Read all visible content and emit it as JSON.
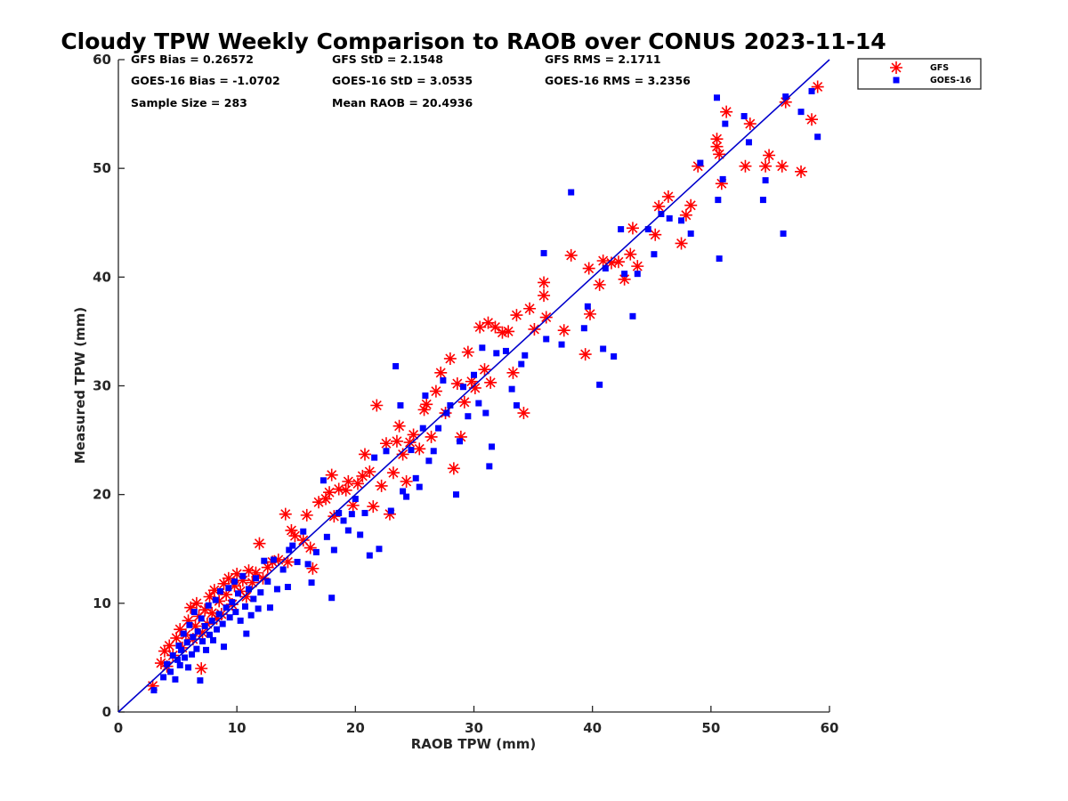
{
  "chart_data": {
    "type": "scatter",
    "title": "Cloudy TPW Weekly Comparison to RAOB over CONUS 2023-11-14",
    "xlabel": "RAOB TPW (mm)",
    "ylabel": "Measured TPW (mm)",
    "xlim": [
      0,
      60
    ],
    "ylim": [
      0,
      60
    ],
    "x_ticks": [
      "0",
      "10",
      "20",
      "30",
      "40",
      "50",
      "60"
    ],
    "y_ticks": [
      "0",
      "10",
      "20",
      "30",
      "40",
      "50",
      "60"
    ],
    "grid": false,
    "legend_position": "top-right (outside plot)",
    "reference_line": {
      "label": "1:1 line",
      "color": "#0000cc",
      "x": [
        0,
        60
      ],
      "y": [
        0,
        60
      ]
    },
    "stats": {
      "gfs_bias": "GFS Bias = 0.26572",
      "gfs_std": "GFS StD = 2.1548",
      "gfs_rms": "GFS RMS = 2.1711",
      "goes_bias": "GOES-16 Bias = -1.0702",
      "goes_std": "GOES-16 StD = 3.0535",
      "goes_rms": "GOES-16 RMS = 3.2356",
      "sample_size": "Sample Size = 283",
      "mean_raob": "Mean RAOB = 20.4936"
    },
    "series": [
      {
        "name": "GFS",
        "marker": "asterisk",
        "color": "#ff0000",
        "points": [
          [
            2.9,
            2.4
          ],
          [
            3.6,
            4.5
          ],
          [
            3.9,
            5.6
          ],
          [
            4.1,
            4.2
          ],
          [
            4.3,
            6.1
          ],
          [
            4.6,
            5.2
          ],
          [
            4.9,
            6.8
          ],
          [
            5.2,
            7.6
          ],
          [
            5.4,
            5.9
          ],
          [
            5.7,
            7.1
          ],
          [
            5.9,
            8.4
          ],
          [
            6.1,
            9.6
          ],
          [
            6.3,
            6.7
          ],
          [
            6.5,
            7.9
          ],
          [
            6.6,
            10.0
          ],
          [
            6.8,
            8.8
          ],
          [
            7.0,
            4.0
          ],
          [
            7.1,
            7.3
          ],
          [
            7.3,
            9.4
          ],
          [
            7.5,
            8.1
          ],
          [
            7.7,
            10.6
          ],
          [
            7.9,
            9.1
          ],
          [
            8.1,
            11.2
          ],
          [
            8.3,
            8.6
          ],
          [
            8.5,
            10.2
          ],
          [
            8.7,
            9.0
          ],
          [
            8.9,
            11.8
          ],
          [
            9.1,
            10.8
          ],
          [
            9.3,
            12.3
          ],
          [
            9.6,
            9.9
          ],
          [
            9.8,
            11.6
          ],
          [
            10.0,
            12.7
          ],
          [
            10.3,
            11.1
          ],
          [
            10.5,
            12.1
          ],
          [
            10.8,
            10.6
          ],
          [
            11.0,
            13.0
          ],
          [
            11.3,
            11.9
          ],
          [
            11.6,
            12.8
          ],
          [
            11.9,
            15.5
          ],
          [
            12.2,
            12.3
          ],
          [
            12.6,
            13.3
          ],
          [
            13.0,
            13.8
          ],
          [
            13.5,
            14.0
          ],
          [
            14.1,
            18.2
          ],
          [
            14.3,
            13.8
          ],
          [
            14.6,
            16.7
          ],
          [
            14.9,
            16.2
          ],
          [
            15.6,
            15.8
          ],
          [
            15.9,
            18.1
          ],
          [
            16.2,
            15.1
          ],
          [
            16.4,
            13.2
          ],
          [
            16.9,
            19.3
          ],
          [
            17.5,
            19.6
          ],
          [
            17.8,
            20.2
          ],
          [
            18.0,
            21.8
          ],
          [
            18.2,
            18.0
          ],
          [
            18.6,
            20.5
          ],
          [
            19.2,
            20.4
          ],
          [
            19.4,
            21.2
          ],
          [
            19.8,
            19.0
          ],
          [
            20.2,
            21.0
          ],
          [
            20.6,
            21.7
          ],
          [
            20.8,
            23.7
          ],
          [
            21.2,
            22.1
          ],
          [
            21.5,
            18.9
          ],
          [
            21.8,
            28.2
          ],
          [
            22.2,
            20.8
          ],
          [
            22.6,
            24.7
          ],
          [
            22.9,
            18.2
          ],
          [
            23.2,
            22.0
          ],
          [
            23.5,
            24.9
          ],
          [
            23.7,
            26.3
          ],
          [
            24.0,
            23.7
          ],
          [
            24.3,
            21.2
          ],
          [
            24.6,
            24.8
          ],
          [
            24.9,
            25.5
          ],
          [
            25.4,
            24.2
          ],
          [
            25.8,
            27.8
          ],
          [
            26.0,
            28.3
          ],
          [
            26.4,
            25.3
          ],
          [
            26.8,
            29.5
          ],
          [
            27.2,
            31.2
          ],
          [
            27.6,
            27.5
          ],
          [
            28.0,
            32.5
          ],
          [
            28.3,
            22.4
          ],
          [
            28.6,
            30.2
          ],
          [
            28.9,
            25.3
          ],
          [
            29.2,
            28.5
          ],
          [
            29.5,
            33.1
          ],
          [
            29.8,
            30.4
          ],
          [
            30.1,
            29.8
          ],
          [
            30.5,
            35.4
          ],
          [
            30.9,
            31.5
          ],
          [
            31.2,
            35.8
          ],
          [
            31.4,
            30.3
          ],
          [
            31.8,
            35.4
          ],
          [
            32.4,
            34.9
          ],
          [
            32.9,
            35.0
          ],
          [
            33.3,
            31.2
          ],
          [
            33.6,
            36.5
          ],
          [
            34.2,
            27.5
          ],
          [
            34.7,
            37.1
          ],
          [
            35.1,
            35.2
          ],
          [
            35.9,
            39.5
          ],
          [
            35.9,
            38.3
          ],
          [
            36.1,
            36.3
          ],
          [
            37.6,
            35.1
          ],
          [
            38.2,
            42.0
          ],
          [
            39.4,
            32.9
          ],
          [
            39.7,
            40.8
          ],
          [
            39.8,
            36.6
          ],
          [
            40.6,
            39.3
          ],
          [
            40.9,
            41.5
          ],
          [
            41.6,
            41.3
          ],
          [
            42.2,
            41.4
          ],
          [
            42.7,
            39.8
          ],
          [
            43.2,
            42.1
          ],
          [
            43.4,
            44.5
          ],
          [
            43.8,
            41.0
          ],
          [
            45.3,
            43.9
          ],
          [
            45.6,
            46.5
          ],
          [
            46.4,
            47.4
          ],
          [
            47.5,
            43.1
          ],
          [
            47.9,
            45.7
          ],
          [
            48.3,
            46.6
          ],
          [
            48.9,
            50.2
          ],
          [
            50.5,
            52.7
          ],
          [
            50.5,
            52.0
          ],
          [
            50.7,
            51.3
          ],
          [
            50.9,
            48.6
          ],
          [
            51.3,
            55.2
          ],
          [
            52.9,
            50.2
          ],
          [
            53.3,
            54.1
          ],
          [
            54.6,
            50.2
          ],
          [
            54.9,
            51.2
          ],
          [
            56.0,
            50.2
          ],
          [
            56.3,
            56.1
          ],
          [
            57.6,
            49.7
          ],
          [
            58.5,
            54.5
          ],
          [
            59.0,
            57.5
          ]
        ]
      },
      {
        "name": "GOES-16",
        "marker": "square",
        "color": "#0000ff",
        "points": [
          [
            3.0,
            2.0
          ],
          [
            3.8,
            3.2
          ],
          [
            4.1,
            4.4
          ],
          [
            4.4,
            3.7
          ],
          [
            4.6,
            5.2
          ],
          [
            4.8,
            3.0
          ],
          [
            5.0,
            4.8
          ],
          [
            5.1,
            6.1
          ],
          [
            5.2,
            4.3
          ],
          [
            5.3,
            5.7
          ],
          [
            5.5,
            7.2
          ],
          [
            5.6,
            5.0
          ],
          [
            5.8,
            6.4
          ],
          [
            5.9,
            4.1
          ],
          [
            6.0,
            8.0
          ],
          [
            6.2,
            5.3
          ],
          [
            6.3,
            6.9
          ],
          [
            6.4,
            9.2
          ],
          [
            6.6,
            5.8
          ],
          [
            6.7,
            7.4
          ],
          [
            6.9,
            2.9
          ],
          [
            7.0,
            8.6
          ],
          [
            7.1,
            6.5
          ],
          [
            7.3,
            7.9
          ],
          [
            7.4,
            5.7
          ],
          [
            7.6,
            9.8
          ],
          [
            7.7,
            7.1
          ],
          [
            7.9,
            8.4
          ],
          [
            8.0,
            6.6
          ],
          [
            8.2,
            10.3
          ],
          [
            8.3,
            7.6
          ],
          [
            8.5,
            9.0
          ],
          [
            8.6,
            11.1
          ],
          [
            8.8,
            8.1
          ],
          [
            8.9,
            6.0
          ],
          [
            9.1,
            9.6
          ],
          [
            9.3,
            11.4
          ],
          [
            9.4,
            8.7
          ],
          [
            9.6,
            10.1
          ],
          [
            9.8,
            12.0
          ],
          [
            9.9,
            9.2
          ],
          [
            10.1,
            10.9
          ],
          [
            10.3,
            8.4
          ],
          [
            10.5,
            12.5
          ],
          [
            10.7,
            9.7
          ],
          [
            10.8,
            7.2
          ],
          [
            11.0,
            11.3
          ],
          [
            11.2,
            8.9
          ],
          [
            11.4,
            10.4
          ],
          [
            11.6,
            12.3
          ],
          [
            11.8,
            9.5
          ],
          [
            12.0,
            11.0
          ],
          [
            12.3,
            13.9
          ],
          [
            12.6,
            12.0
          ],
          [
            12.8,
            9.6
          ],
          [
            13.1,
            14.0
          ],
          [
            13.4,
            11.3
          ],
          [
            13.9,
            13.1
          ],
          [
            14.3,
            11.5
          ],
          [
            14.4,
            14.9
          ],
          [
            14.7,
            15.3
          ],
          [
            15.1,
            13.8
          ],
          [
            15.6,
            16.6
          ],
          [
            16.0,
            13.6
          ],
          [
            16.3,
            11.9
          ],
          [
            16.7,
            14.7
          ],
          [
            17.3,
            21.3
          ],
          [
            17.6,
            16.1
          ],
          [
            18.0,
            10.5
          ],
          [
            18.2,
            14.9
          ],
          [
            18.6,
            18.3
          ],
          [
            19.0,
            17.6
          ],
          [
            19.4,
            16.7
          ],
          [
            19.7,
            18.2
          ],
          [
            20.0,
            19.6
          ],
          [
            20.4,
            16.3
          ],
          [
            20.8,
            18.3
          ],
          [
            21.2,
            14.4
          ],
          [
            21.6,
            23.4
          ],
          [
            22.0,
            15.0
          ],
          [
            22.6,
            24.0
          ],
          [
            23.0,
            18.5
          ],
          [
            23.4,
            31.8
          ],
          [
            23.8,
            28.2
          ],
          [
            24.0,
            20.3
          ],
          [
            24.3,
            19.8
          ],
          [
            24.7,
            24.1
          ],
          [
            25.1,
            21.5
          ],
          [
            25.4,
            20.7
          ],
          [
            25.7,
            26.1
          ],
          [
            25.9,
            29.1
          ],
          [
            26.2,
            23.1
          ],
          [
            26.6,
            24.0
          ],
          [
            27.0,
            26.1
          ],
          [
            27.4,
            30.5
          ],
          [
            27.7,
            27.5
          ],
          [
            28.0,
            28.2
          ],
          [
            28.5,
            20.0
          ],
          [
            28.8,
            24.9
          ],
          [
            29.1,
            29.9
          ],
          [
            29.5,
            27.2
          ],
          [
            30.0,
            31.0
          ],
          [
            30.4,
            28.4
          ],
          [
            30.7,
            33.5
          ],
          [
            31.0,
            27.5
          ],
          [
            31.3,
            22.6
          ],
          [
            31.5,
            24.4
          ],
          [
            31.9,
            33.0
          ],
          [
            32.7,
            33.2
          ],
          [
            33.2,
            29.7
          ],
          [
            33.6,
            28.2
          ],
          [
            34.0,
            32.0
          ],
          [
            34.3,
            32.8
          ],
          [
            35.9,
            42.2
          ],
          [
            36.1,
            34.3
          ],
          [
            37.4,
            33.8
          ],
          [
            38.2,
            47.8
          ],
          [
            39.3,
            35.3
          ],
          [
            39.6,
            37.3
          ],
          [
            40.6,
            30.1
          ],
          [
            40.9,
            33.4
          ],
          [
            41.1,
            40.8
          ],
          [
            41.8,
            32.7
          ],
          [
            42.4,
            44.4
          ],
          [
            42.7,
            40.3
          ],
          [
            43.4,
            36.4
          ],
          [
            43.8,
            40.3
          ],
          [
            44.7,
            44.4
          ],
          [
            45.2,
            42.1
          ],
          [
            45.8,
            45.8
          ],
          [
            46.5,
            45.4
          ],
          [
            47.5,
            45.2
          ],
          [
            48.3,
            44.0
          ],
          [
            49.1,
            50.5
          ],
          [
            50.5,
            56.5
          ],
          [
            50.6,
            47.1
          ],
          [
            50.7,
            41.7
          ],
          [
            51.0,
            49.0
          ],
          [
            51.2,
            54.1
          ],
          [
            52.8,
            54.8
          ],
          [
            53.2,
            52.4
          ],
          [
            54.4,
            47.1
          ],
          [
            54.6,
            48.9
          ],
          [
            56.1,
            44.0
          ],
          [
            56.3,
            56.6
          ],
          [
            57.6,
            55.2
          ],
          [
            58.5,
            57.1
          ],
          [
            59.0,
            52.9
          ]
        ]
      }
    ]
  }
}
